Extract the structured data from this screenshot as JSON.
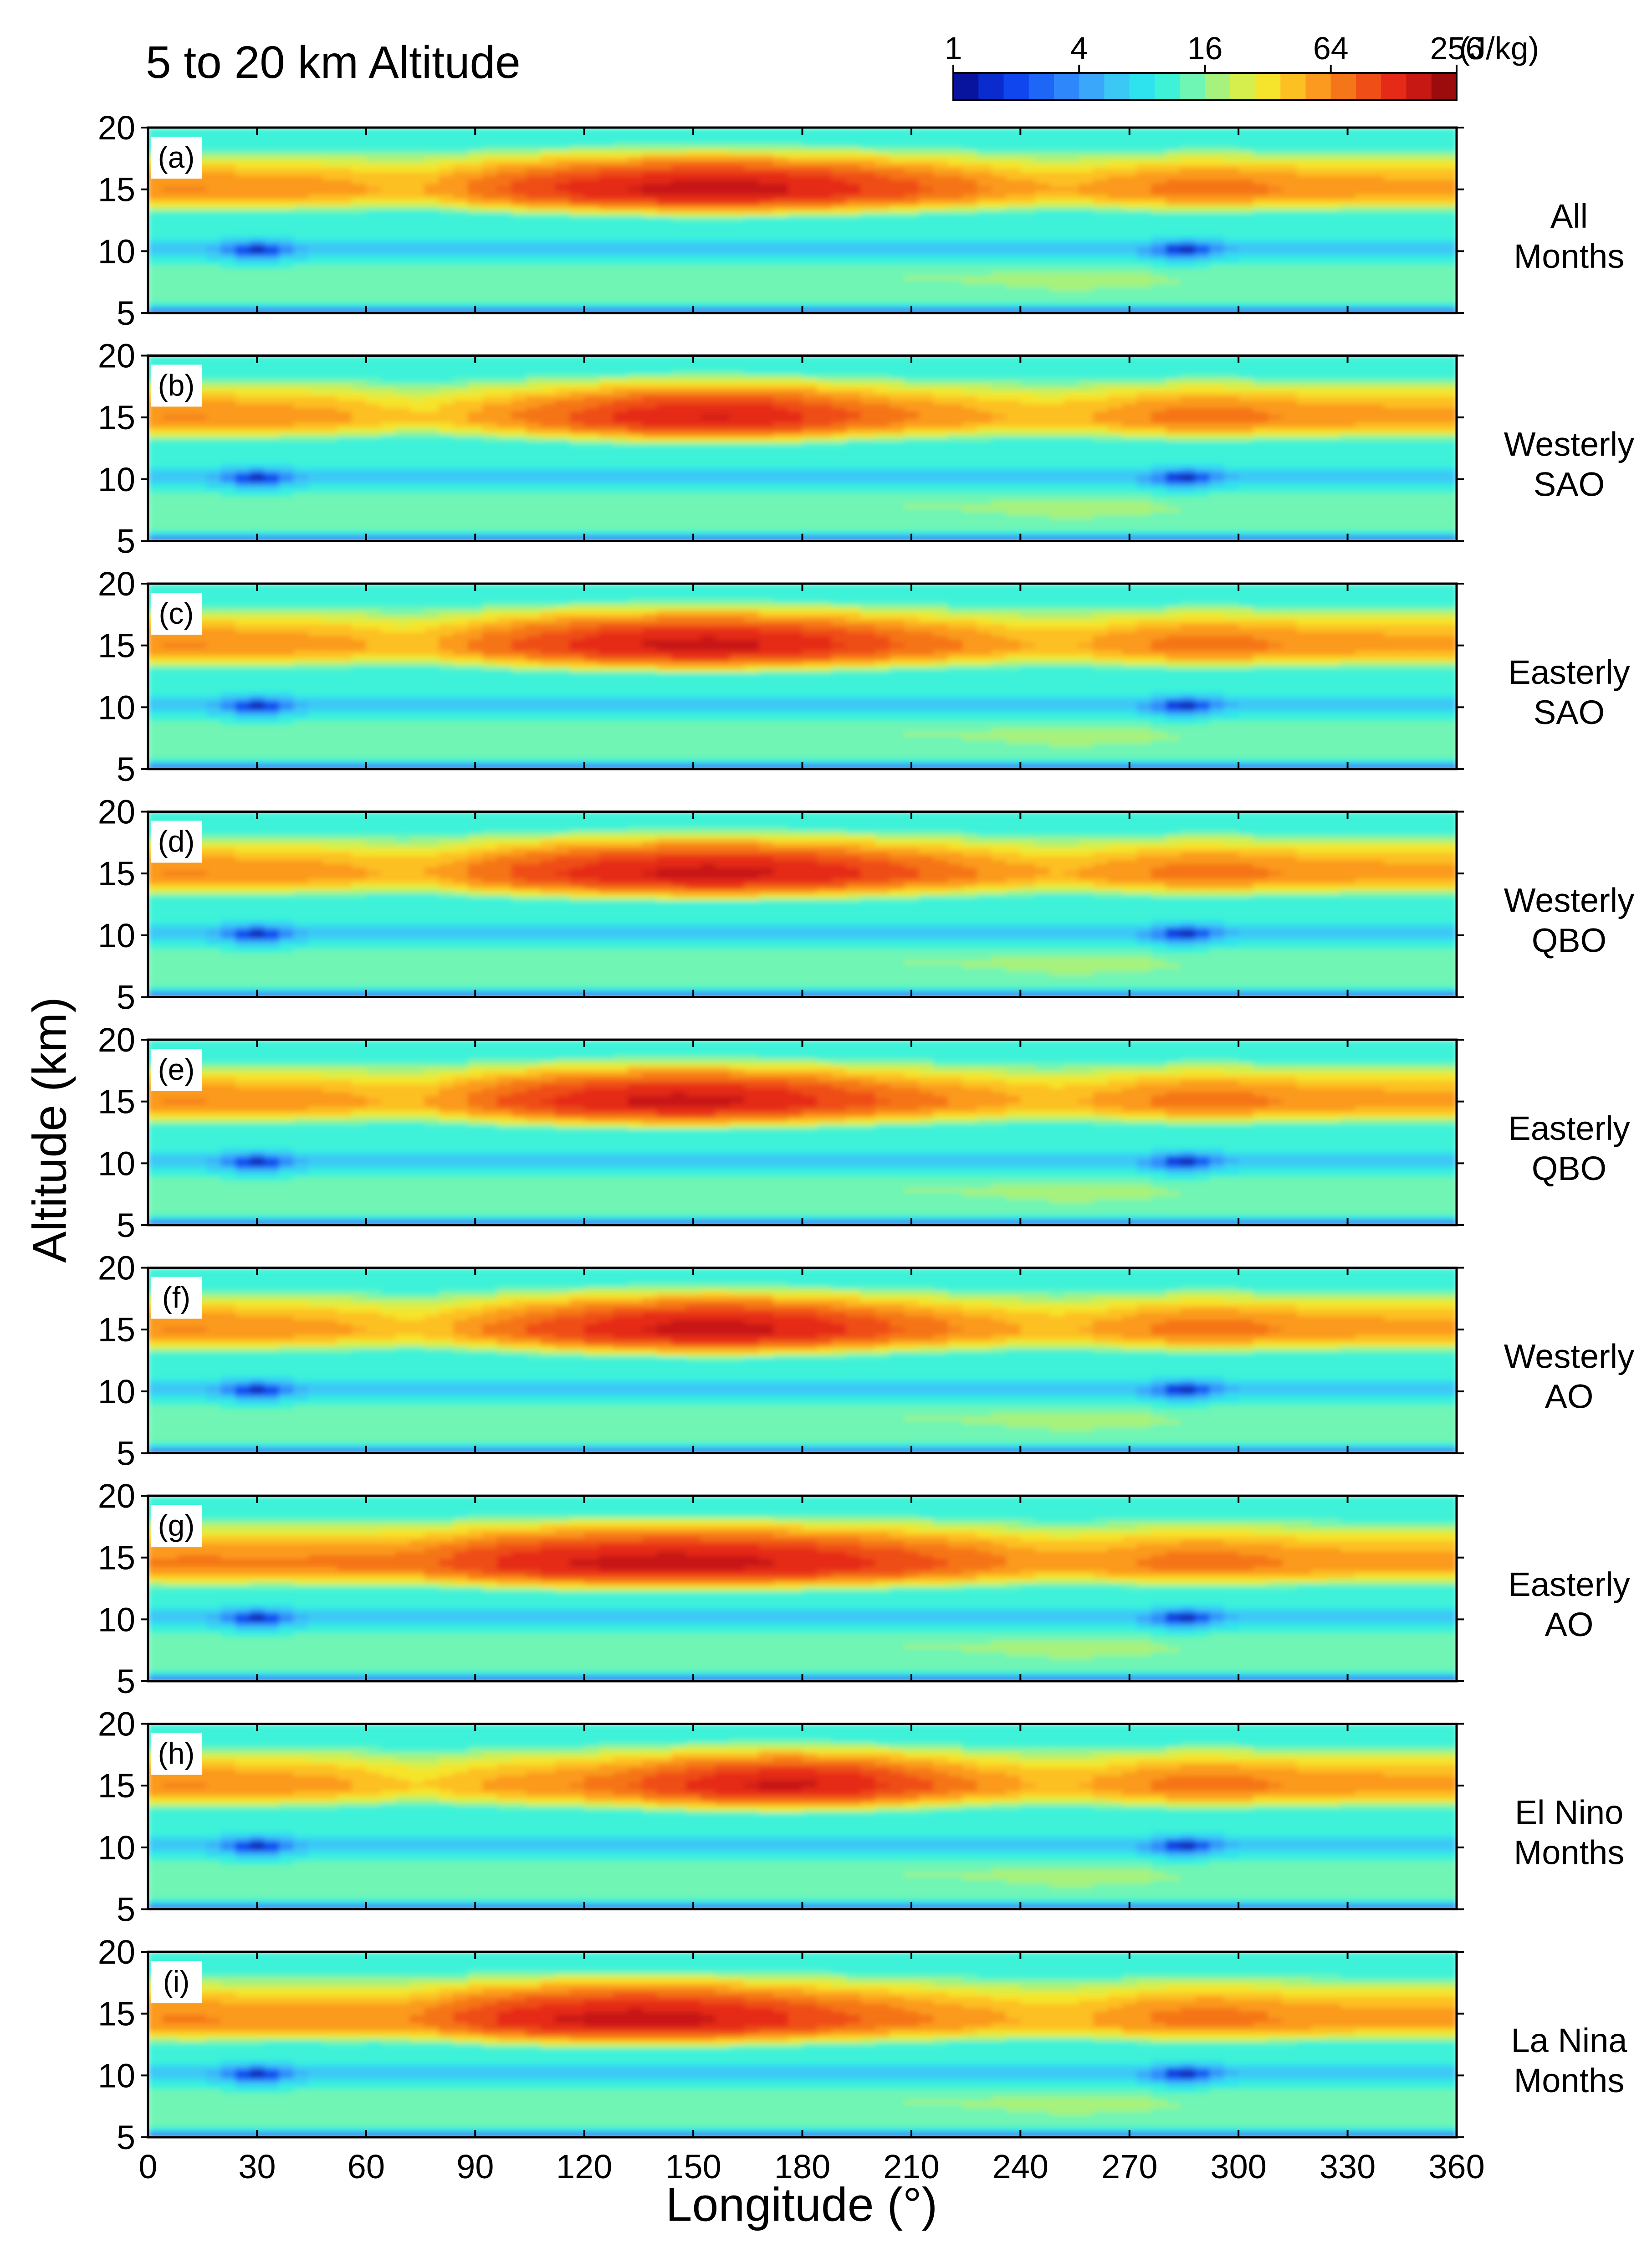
{
  "figure": {
    "title": "5 to 20 km Altitude",
    "ylabel": "Altitude (km)",
    "xlabel": "Longitude (°)"
  },
  "colorbar": {
    "ticks": [
      "1",
      "4",
      "16",
      "64",
      "256"
    ],
    "unit": "(J/kg)",
    "colors": [
      "#08149e",
      "#0a2ccf",
      "#0f46ee",
      "#1e66f6",
      "#2f88fb",
      "#3aa7fa",
      "#3cc8f5",
      "#2fe3ee",
      "#3ef2d8",
      "#6ff5b4",
      "#a6f27d",
      "#d6ef4c",
      "#f6e42c",
      "#fdc023",
      "#fb9a1e",
      "#f57519",
      "#ef4e17",
      "#e52a17",
      "#c81814",
      "#9c0c0c"
    ]
  },
  "chart_data": [
    {
      "panel": "(a)",
      "title": "All Months",
      "type": "heatmap",
      "xlim": [
        0,
        360
      ],
      "ylim": [
        5,
        20
      ],
      "xticks": [
        0,
        30,
        60,
        90,
        120,
        150,
        180,
        210,
        240,
        270,
        300,
        330,
        360
      ],
      "yticks": [
        5,
        10,
        15,
        20
      ],
      "zscale": "log2",
      "zunit": "J/kg",
      "peak_altitude_km": 15,
      "peak_value": 200,
      "peak_longitude_range": [
        120,
        190
      ],
      "min_altitude_km": 10,
      "min_longitude": [
        30,
        285
      ]
    },
    {
      "panel": "(b)",
      "title": "Westerly SAO",
      "type": "heatmap",
      "xlim": [
        0,
        360
      ],
      "ylim": [
        5,
        20
      ],
      "xticks": [
        0,
        30,
        60,
        90,
        120,
        150,
        180,
        210,
        240,
        270,
        300,
        330,
        360
      ],
      "yticks": [
        5,
        10,
        15,
        20
      ],
      "zscale": "log2",
      "zunit": "J/kg",
      "peak_altitude_km": 15,
      "peak_value": 170,
      "peak_longitude_range": [
        130,
        180
      ],
      "min_altitude_km": 10,
      "min_longitude": [
        30,
        285
      ]
    },
    {
      "panel": "(c)",
      "title": "Easterly SAO",
      "type": "heatmap",
      "xlim": [
        0,
        360
      ],
      "ylim": [
        5,
        20
      ],
      "xticks": [
        0,
        30,
        60,
        90,
        120,
        150,
        180,
        210,
        240,
        270,
        300,
        330,
        360
      ],
      "yticks": [
        5,
        10,
        15,
        20
      ],
      "zscale": "log2",
      "zunit": "J/kg",
      "peak_altitude_km": 15,
      "peak_value": 190,
      "peak_longitude_range": [
        120,
        185
      ],
      "min_altitude_km": 10,
      "min_longitude": [
        30,
        285
      ]
    },
    {
      "panel": "(d)",
      "title": "Westerly QBO",
      "type": "heatmap",
      "xlim": [
        0,
        360
      ],
      "ylim": [
        5,
        20
      ],
      "xticks": [
        0,
        30,
        60,
        90,
        120,
        150,
        180,
        210,
        240,
        270,
        300,
        330,
        360
      ],
      "yticks": [
        5,
        10,
        15,
        20
      ],
      "zscale": "log2",
      "zunit": "J/kg",
      "peak_altitude_km": 15,
      "peak_value": 190,
      "peak_longitude_range": [
        120,
        190
      ],
      "min_altitude_km": 10,
      "min_longitude": [
        30,
        285
      ]
    },
    {
      "panel": "(e)",
      "title": "Easterly QBO",
      "type": "heatmap",
      "xlim": [
        0,
        360
      ],
      "ylim": [
        5,
        20
      ],
      "xticks": [
        0,
        30,
        60,
        90,
        120,
        150,
        180,
        210,
        240,
        270,
        300,
        330,
        360
      ],
      "yticks": [
        5,
        10,
        15,
        20
      ],
      "zscale": "log2",
      "zunit": "J/kg",
      "peak_altitude_km": 15,
      "peak_value": 190,
      "peak_longitude_range": [
        115,
        180
      ],
      "min_altitude_km": 10,
      "min_longitude": [
        30,
        285
      ]
    },
    {
      "panel": "(f)",
      "title": "Westerly AO",
      "type": "heatmap",
      "xlim": [
        0,
        360
      ],
      "ylim": [
        5,
        20
      ],
      "xticks": [
        0,
        30,
        60,
        90,
        120,
        150,
        180,
        210,
        240,
        270,
        300,
        330,
        360
      ],
      "yticks": [
        5,
        10,
        15,
        20
      ],
      "zscale": "log2",
      "zunit": "J/kg",
      "peak_altitude_km": 15,
      "peak_value": 200,
      "peak_longitude_range": [
        125,
        185
      ],
      "min_altitude_km": 10,
      "min_longitude": [
        30,
        285
      ]
    },
    {
      "panel": "(g)",
      "title": "Easterly AO",
      "type": "heatmap",
      "xlim": [
        0,
        360
      ],
      "ylim": [
        5,
        20
      ],
      "xticks": [
        0,
        30,
        60,
        90,
        120,
        150,
        180,
        210,
        240,
        270,
        300,
        330,
        360
      ],
      "yticks": [
        5,
        10,
        15,
        20
      ],
      "zscale": "log2",
      "zunit": "J/kg",
      "peak_altitude_km": 14.5,
      "peak_value": 200,
      "peak_longitude_range": [
        100,
        190
      ],
      "min_altitude_km": 10,
      "min_longitude": [
        30,
        285
      ]
    },
    {
      "panel": "(h)",
      "title": "El Nino Months",
      "type": "heatmap",
      "xlim": [
        0,
        360
      ],
      "ylim": [
        5,
        20
      ],
      "xticks": [
        0,
        30,
        60,
        90,
        120,
        150,
        180,
        210,
        240,
        270,
        300,
        330,
        360
      ],
      "yticks": [
        5,
        10,
        15,
        20
      ],
      "zscale": "log2",
      "zunit": "J/kg",
      "peak_altitude_km": 15,
      "peak_value": 180,
      "peak_longitude_range": [
        150,
        200
      ],
      "min_altitude_km": 10,
      "min_longitude": [
        30,
        285
      ]
    },
    {
      "panel": "(i)",
      "title": "La Nina Months",
      "type": "heatmap",
      "xlim": [
        0,
        360
      ],
      "ylim": [
        5,
        20
      ],
      "xticks": [
        0,
        30,
        60,
        90,
        120,
        150,
        180,
        210,
        240,
        270,
        300,
        330,
        360
      ],
      "yticks": [
        5,
        10,
        15,
        20
      ],
      "zscale": "log2",
      "zunit": "J/kg",
      "peak_altitude_km": 14.5,
      "peak_value": 200,
      "peak_longitude_range": [
        100,
        170
      ],
      "min_altitude_km": 10,
      "min_longitude": [
        30,
        285
      ]
    }
  ],
  "side_labels": [
    {
      "line1": "All",
      "line2": "Months"
    },
    {
      "line1": "Westerly",
      "line2": "SAO"
    },
    {
      "line1": "Easterly",
      "line2": "SAO"
    },
    {
      "line1": "Westerly",
      "line2": "QBO"
    },
    {
      "line1": "Easterly",
      "line2": "QBO"
    },
    {
      "line1": "Westerly",
      "line2": "AO"
    },
    {
      "line1": "Easterly",
      "line2": "AO"
    },
    {
      "line1": "El Nino",
      "line2": "Months"
    },
    {
      "line1": "La Nina",
      "line2": "Months"
    }
  ]
}
